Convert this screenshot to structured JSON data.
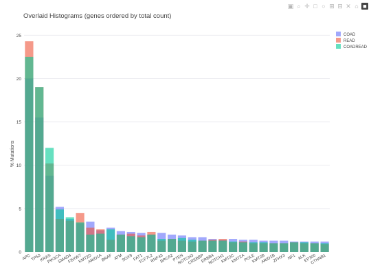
{
  "modebar": {
    "icons": [
      "camera-icon",
      "zoom-icon",
      "pan-icon",
      "box-select-icon",
      "lasso-icon",
      "zoom-in-icon",
      "zoom-out-icon",
      "autoscale-icon",
      "home-icon",
      "plotly-logo-icon"
    ],
    "glyphs": [
      "▣",
      "⌕",
      "✛",
      "□",
      "○",
      "⊞",
      "⊟",
      "✕",
      "⌂",
      "■"
    ]
  },
  "chart_data": {
    "type": "bar",
    "barmode": "overlay",
    "title": "Overlaid Histograms (genes ordered by total count)",
    "xlabel": "",
    "ylabel": "% Mutations",
    "ylim": [
      0,
      25.5
    ],
    "yticks": [
      0,
      5,
      10,
      15,
      20,
      25
    ],
    "grid": true,
    "legend_position": "top-right",
    "categories": [
      "APC",
      "TP53",
      "KRAS",
      "PIK3CA",
      "SMAD4",
      "FBXW7",
      "KMT2D",
      "ARID1A",
      "BRAF",
      "ATM",
      "SOX9",
      "FAT1",
      "TCF7L2",
      "RNF43",
      "BRCA2",
      "PTEN",
      "NOTCH3",
      "CREBBP",
      "ERBB4",
      "NOTCH1",
      "KMT2C",
      "KMT2A",
      "POLE",
      "KMT2B",
      "ARID1B",
      "ZFHX3",
      "NF1",
      "ALK",
      "EP300",
      "CTNNB1"
    ],
    "series": [
      {
        "name": "COAD",
        "color": "#636efa",
        "values": [
          20.0,
          15.5,
          8.8,
          5.2,
          3.8,
          3.3,
          3.5,
          2.5,
          2.8,
          2.4,
          2.3,
          2.2,
          2.0,
          2.2,
          2.0,
          1.9,
          1.7,
          1.7,
          1.5,
          1.4,
          1.5,
          1.4,
          1.4,
          1.3,
          1.3,
          1.3,
          1.2,
          1.2,
          1.2,
          1.2
        ]
      },
      {
        "name": "READ",
        "color": "#ef553b",
        "values": [
          24.3,
          19.0,
          10.2,
          3.8,
          3.6,
          4.5,
          2.8,
          2.6,
          1.4,
          2.0,
          2.1,
          1.9,
          2.3,
          1.3,
          1.5,
          1.3,
          1.2,
          1.3,
          1.4,
          1.5,
          1.1,
          1.2,
          1.0,
          1.0,
          1.0,
          1.0,
          1.1,
          1.0,
          1.0,
          0.9
        ]
      },
      {
        "name": "COADREAD",
        "color": "#00cc96",
        "values": [
          22.5,
          19.0,
          12.0,
          4.9,
          4.0,
          3.4,
          2.0,
          2.1,
          2.6,
          2.0,
          1.8,
          1.7,
          2.0,
          1.5,
          1.5,
          1.6,
          1.4,
          1.3,
          1.3,
          1.3,
          1.2,
          1.1,
          1.1,
          1.1,
          1.0,
          1.0,
          1.1,
          1.1,
          1.0,
          1.0
        ]
      }
    ]
  }
}
